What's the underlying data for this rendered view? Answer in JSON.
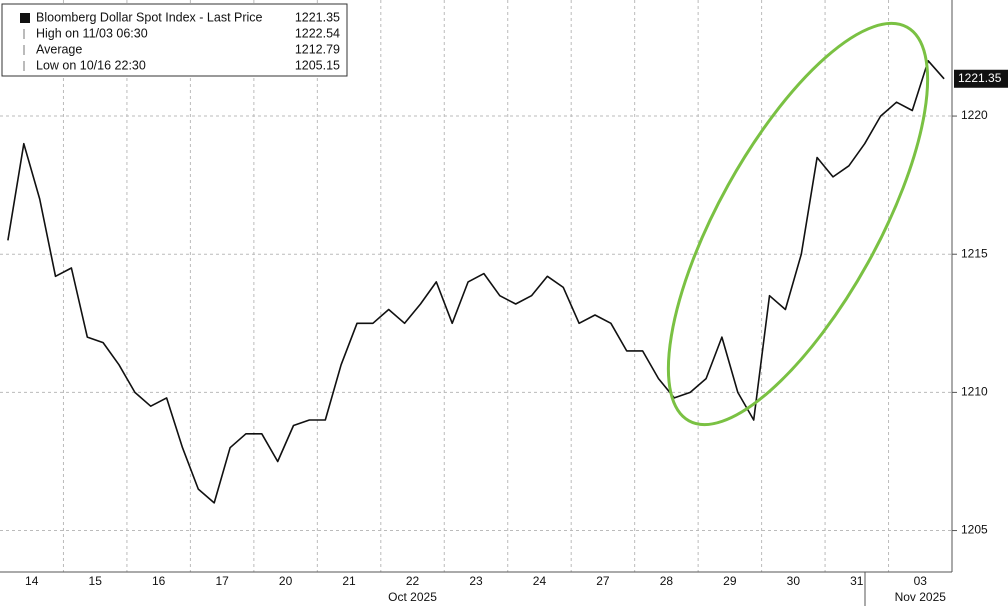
{
  "chart_data": {
    "type": "line",
    "categories": [
      null,
      null,
      "14",
      null,
      null,
      null,
      "15",
      null,
      null,
      null,
      "16",
      null,
      null,
      null,
      "17",
      null,
      null,
      null,
      "20",
      null,
      null,
      null,
      "21",
      null,
      null,
      null,
      "22",
      null,
      null,
      null,
      "23",
      null,
      null,
      null,
      "24",
      null,
      null,
      null,
      "27",
      null,
      null,
      null,
      "28",
      null,
      null,
      null,
      "29",
      null,
      null,
      null,
      "30",
      null,
      null,
      null,
      "31",
      null,
      null,
      null,
      "03",
      null
    ],
    "x_sublabels": [
      {
        "index": 26,
        "label": "Oct 2025"
      },
      {
        "index": 58,
        "label": "Nov 2025"
      }
    ],
    "series": [
      {
        "name": "Bloomberg Dollar Spot Index - Last Price",
        "color": "#111111",
        "values": [
          1215.5,
          1219,
          1217,
          1214.2,
          1214.5,
          1212,
          1211.8,
          1211,
          1210,
          1209.5,
          1209.8,
          1208,
          1206.5,
          1206,
          1208,
          1208.5,
          1208.5,
          1207.5,
          1208.8,
          1209,
          1209,
          1211,
          1212.5,
          1212.5,
          1213,
          1212.5,
          1213.2,
          1214,
          1212.5,
          1214,
          1214.3,
          1213.5,
          1213.2,
          1213.5,
          1214.2,
          1213.8,
          1212.5,
          1212.8,
          1212.5,
          1211.5,
          1211.5,
          1210.5,
          1209.8,
          1210,
          1210.5,
          1212,
          1210,
          1209,
          1213.5,
          1213,
          1215,
          1218.5,
          1217.8,
          1218.2,
          1219,
          1220,
          1220.5,
          1220.2,
          1222,
          1221.35
        ]
      }
    ],
    "legend_rows": [
      {
        "label": "Bloomberg Dollar Spot Index - Last Price",
        "value": 1221.35
      },
      {
        "label": "High on 11/03 06:30",
        "value": 1222.54
      },
      {
        "label": "Average",
        "value": 1212.79
      },
      {
        "label": "Low on 10/16 22:30",
        "value": 1205.15
      }
    ],
    "ylim": [
      1203.5,
      1224.2
    ],
    "yticks": [
      1205,
      1210,
      1215,
      1220
    ],
    "grid": true
  }
}
